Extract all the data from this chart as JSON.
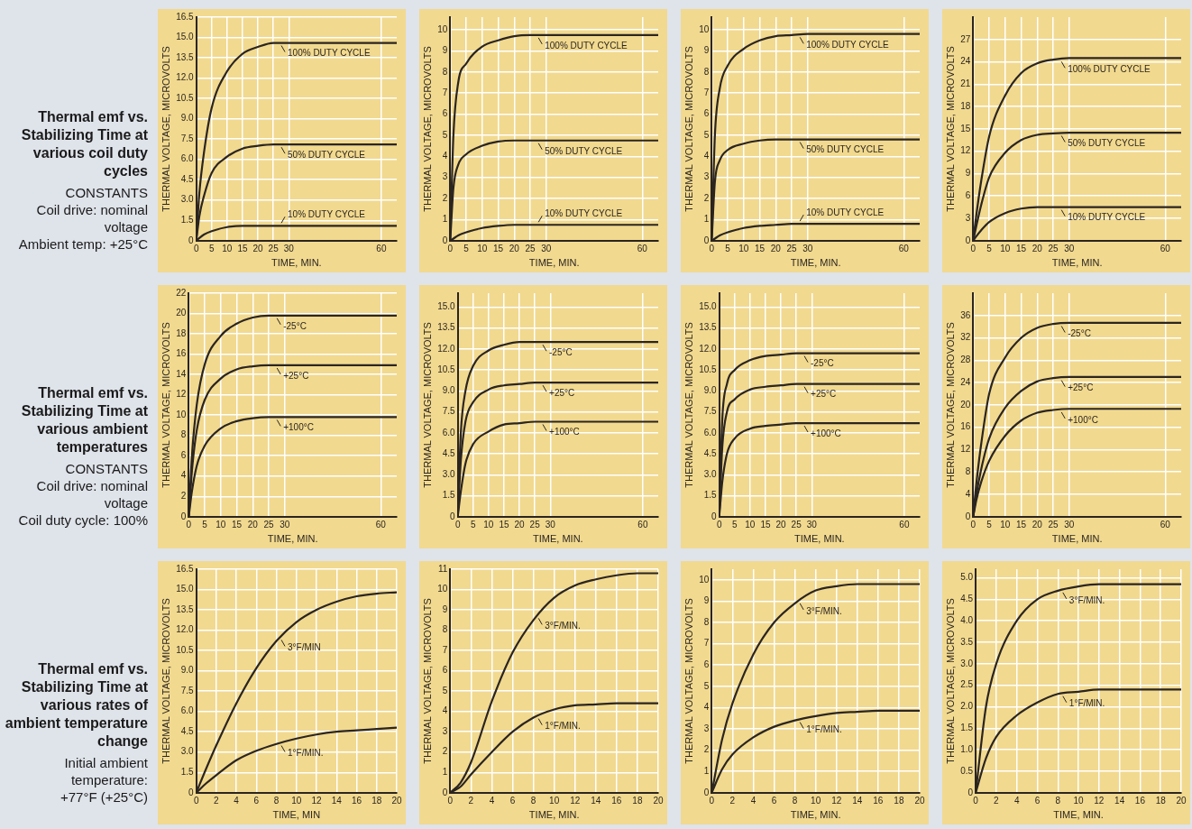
{
  "chart_data": [
    {
      "type": "other",
      "title": "Thermal emf vs. Stabilizing Time at various coil duty cycles",
      "annotations": [
        "CONSTANTS",
        "Coil drive: nominal voltage",
        "Ambient temp: +25°C"
      ]
    },
    {
      "type": "line",
      "xlabel": "TIME, MIN.",
      "ylabel": "THERMAL VOLTAGE, MICROVOLTS",
      "x": [
        0,
        1,
        2.5,
        5,
        10,
        15,
        20,
        25,
        30,
        65
      ],
      "xlim": [
        0,
        65
      ],
      "xticks": [
        0,
        5,
        10,
        15,
        20,
        25,
        30,
        60
      ],
      "ylim": [
        0,
        16.5
      ],
      "yticks": [
        0,
        1.5,
        {
          "value": 3,
          "label": "3.0"
        },
        4.5,
        {
          "value": 6,
          "label": "6.0"
        },
        7.5,
        {
          "value": 9,
          "label": "9.0"
        },
        10.5,
        {
          "value": 12,
          "label": "12.0"
        },
        13.5,
        {
          "value": 15,
          "label": "15.0"
        },
        16.5
      ],
      "grid": true,
      "legend": "right",
      "marker": "none",
      "line_style": "solid",
      "series": [
        {
          "name": "100% DUTY CYCLE",
          "color": "#2b2520",
          "values": [
            0,
            3.5,
            6.5,
            9.8,
            12.5,
            13.8,
            14.3,
            14.6,
            14.6,
            14.6
          ]
        },
        {
          "name": "50% DUTY CYCLE",
          "color": "#2b2520",
          "values": [
            0,
            1.8,
            3.3,
            5.0,
            6.2,
            6.8,
            7.0,
            7.1,
            7.1,
            7.1
          ]
        },
        {
          "name": "10% DUTY CYCLE",
          "color": "#2b2520",
          "values": [
            0,
            0.2,
            0.45,
            0.7,
            1.0,
            1.1,
            1.1,
            1.1,
            1.1,
            1.1
          ]
        }
      ]
    },
    {
      "type": "line",
      "xlabel": "TIME, MIN.",
      "ylabel": "THERMAL VOLTAGE, MICROVOLTS",
      "x": [
        0,
        1,
        2.5,
        5,
        10,
        15,
        20,
        25,
        30,
        65
      ],
      "xlim": [
        0,
        65
      ],
      "xticks": [
        0,
        5,
        10,
        15,
        20,
        25,
        30,
        60
      ],
      "ylim": [
        0,
        10.6
      ],
      "yticks": [
        0,
        1,
        2,
        3,
        4,
        5,
        6,
        7,
        8,
        9,
        10
      ],
      "grid": true,
      "legend": "right",
      "marker": "none",
      "line_style": "solid",
      "series": [
        {
          "name": "100% DUTY CYCLE",
          "color": "#2b2520",
          "values": [
            0,
            5,
            7.5,
            8.4,
            9.2,
            9.5,
            9.7,
            9.75,
            9.75,
            9.75
          ]
        },
        {
          "name": "50% DUTY CYCLE",
          "color": "#2b2520",
          "values": [
            0,
            2.5,
            3.6,
            4.1,
            4.5,
            4.7,
            4.75,
            4.75,
            4.75,
            4.75
          ]
        },
        {
          "name": "10% DUTY CYCLE",
          "color": "#2b2520",
          "values": [
            0,
            0.1,
            0.25,
            0.4,
            0.6,
            0.7,
            0.75,
            0.75,
            0.75,
            0.75
          ]
        }
      ]
    },
    {
      "type": "line",
      "xlabel": "TIME, MIN.",
      "ylabel": "THERMAL VOLTAGE, MICROVOLTS",
      "x": [
        0,
        1,
        2.5,
        5,
        10,
        15,
        20,
        25,
        30,
        65
      ],
      "xlim": [
        0,
        65
      ],
      "xticks": [
        0,
        5,
        10,
        15,
        20,
        25,
        30,
        60
      ],
      "ylim": [
        0,
        10.6
      ],
      "yticks": [
        0,
        1,
        2,
        3,
        4,
        5,
        6,
        7,
        8,
        9,
        10
      ],
      "grid": true,
      "legend": "right",
      "marker": "none",
      "line_style": "solid",
      "series": [
        {
          "name": "100% DUTY CYCLE",
          "color": "#2b2520",
          "values": [
            0,
            5,
            7.2,
            8.3,
            9.1,
            9.5,
            9.7,
            9.75,
            9.8,
            9.8
          ]
        },
        {
          "name": "50% DUTY CYCLE",
          "color": "#2b2520",
          "values": [
            0,
            2.8,
            3.8,
            4.3,
            4.6,
            4.75,
            4.8,
            4.8,
            4.8,
            4.8
          ]
        },
        {
          "name": "10% DUTY CYCLE",
          "color": "#2b2520",
          "values": [
            0,
            0.1,
            0.25,
            0.4,
            0.6,
            0.7,
            0.75,
            0.8,
            0.8,
            0.8
          ]
        }
      ]
    },
    {
      "type": "line",
      "xlabel": "TIME, MIN.",
      "ylabel": "THERMAL VOLTAGE, MICROVOLTS",
      "x": [
        0,
        1,
        2.5,
        5,
        10,
        15,
        20,
        25,
        30,
        65
      ],
      "xlim": [
        0,
        65
      ],
      "xticks": [
        0,
        5,
        10,
        15,
        20,
        25,
        30,
        60
      ],
      "ylim": [
        0,
        30
      ],
      "yticks": [
        0,
        3,
        6,
        9,
        12,
        15,
        18,
        21,
        24,
        27
      ],
      "grid": true,
      "legend": "right",
      "marker": "none",
      "line_style": "solid",
      "series": [
        {
          "name": "100% DUTY CYCLE",
          "color": "#2b2520",
          "values": [
            0,
            3.5,
            8,
            14,
            19.5,
            22.5,
            23.8,
            24.3,
            24.5,
            24.5
          ]
        },
        {
          "name": "50% DUTY CYCLE",
          "color": "#2b2520",
          "values": [
            0,
            2,
            4.8,
            8.5,
            11.8,
            13.5,
            14.2,
            14.4,
            14.5,
            14.5
          ]
        },
        {
          "name": "10% DUTY CYCLE",
          "color": "#2b2520",
          "values": [
            0,
            0.6,
            1.4,
            2.5,
            3.7,
            4.3,
            4.5,
            4.5,
            4.5,
            4.5
          ]
        }
      ]
    },
    {
      "type": "other",
      "title": "Thermal emf vs. Stabilizing Time at various ambient temperatures",
      "annotations": [
        "CONSTANTS",
        "Coil drive: nominal voltage",
        "Coil duty cycle: 100%"
      ]
    },
    {
      "type": "line",
      "xlabel": "TIME, MIN.",
      "ylabel": "THERMAL VOLTAGE, MICROVOLTS",
      "x": [
        0,
        1,
        2.5,
        5,
        10,
        15,
        20,
        25,
        30,
        65
      ],
      "xlim": [
        0,
        65
      ],
      "xticks": [
        0,
        5,
        10,
        15,
        20,
        25,
        30,
        60
      ],
      "ylim": [
        0,
        22
      ],
      "yticks": [
        0,
        2,
        4,
        6,
        8,
        10,
        12,
        14,
        16,
        18,
        20,
        22
      ],
      "grid": true,
      "legend": "right",
      "marker": "none",
      "line_style": "solid",
      "series": [
        {
          "name": "-25°C",
          "color": "#2b2520",
          "values": [
            0,
            6,
            11,
            15,
            17.8,
            19,
            19.6,
            19.8,
            19.8,
            19.8
          ]
        },
        {
          "name": "+25°C",
          "color": "#2b2520",
          "values": [
            0,
            4.5,
            8.5,
            11.5,
            13.6,
            14.5,
            14.8,
            14.9,
            14.9,
            14.9
          ]
        },
        {
          "name": "+100°C",
          "color": "#2b2520",
          "values": [
            0,
            2.5,
            5,
            7,
            8.7,
            9.4,
            9.7,
            9.8,
            9.8,
            9.8
          ]
        }
      ]
    },
    {
      "type": "line",
      "xlabel": "TIME, MIN.",
      "ylabel": "THERMAL VOLTAGE, MICROVOLTS",
      "x": [
        0,
        1,
        2.5,
        5,
        10,
        15,
        20,
        25,
        30,
        65
      ],
      "xlim": [
        0,
        65
      ],
      "xticks": [
        0,
        5,
        10,
        15,
        20,
        25,
        30,
        60
      ],
      "ylim": [
        0,
        16
      ],
      "yticks": [
        0,
        1.5,
        {
          "value": 3,
          "label": "3.0"
        },
        4.5,
        {
          "value": 6,
          "label": "6.0"
        },
        7.5,
        {
          "value": 9,
          "label": "9.0"
        },
        10.5,
        {
          "value": 12,
          "label": "12.0"
        },
        13.5,
        {
          "value": 15,
          "label": "15.0"
        }
      ],
      "grid": true,
      "legend": "right",
      "marker": "none",
      "line_style": "solid",
      "series": [
        {
          "name": "-25°C",
          "color": "#2b2520",
          "values": [
            0,
            6,
            9,
            10.8,
            11.9,
            12.3,
            12.5,
            12.5,
            12.5,
            12.5
          ]
        },
        {
          "name": "+25°C",
          "color": "#2b2520",
          "values": [
            0,
            4,
            6.8,
            8.2,
            9.1,
            9.4,
            9.5,
            9.6,
            9.6,
            9.6
          ]
        },
        {
          "name": "+100°C",
          "color": "#2b2520",
          "values": [
            0,
            1.8,
            3.8,
            5.2,
            6.1,
            6.6,
            6.7,
            6.8,
            6.8,
            6.8
          ]
        }
      ]
    },
    {
      "type": "line",
      "xlabel": "TIME, MIN.",
      "ylabel": "THERMAL VOLTAGE, MICROVOLTS",
      "x": [
        0,
        1,
        2.5,
        5,
        10,
        15,
        20,
        25,
        30,
        65
      ],
      "xlim": [
        0,
        65
      ],
      "xticks": [
        0,
        5,
        10,
        15,
        20,
        25,
        30,
        60
      ],
      "ylim": [
        0,
        16
      ],
      "yticks": [
        0,
        1.5,
        {
          "value": 3,
          "label": "3.0"
        },
        4.5,
        {
          "value": 6,
          "label": "6.0"
        },
        7.5,
        {
          "value": 9,
          "label": "9.0"
        },
        10.5,
        {
          "value": 12,
          "label": "12.0"
        },
        13.5,
        {
          "value": 15,
          "label": "15.0"
        }
      ],
      "grid": true,
      "legend": "right",
      "marker": "none",
      "line_style": "solid",
      "series": [
        {
          "name": "-25°C",
          "color": "#2b2520",
          "values": [
            0,
            7,
            9.5,
            10.5,
            11.2,
            11.5,
            11.6,
            11.7,
            11.7,
            11.7
          ]
        },
        {
          "name": "+25°C",
          "color": "#2b2520",
          "values": [
            0,
            5,
            7.5,
            8.4,
            9.1,
            9.3,
            9.4,
            9.5,
            9.5,
            9.5
          ]
        },
        {
          "name": "+100°C",
          "color": "#2b2520",
          "values": [
            0,
            2.5,
            4.5,
            5.6,
            6.3,
            6.5,
            6.6,
            6.7,
            6.7,
            6.7
          ]
        }
      ]
    },
    {
      "type": "line",
      "xlabel": "TIME, MIN.",
      "ylabel": "THERMAL VOLTAGE, MICROVOLTS",
      "x": [
        0,
        1,
        2.5,
        5,
        10,
        15,
        20,
        25,
        30,
        65
      ],
      "xlim": [
        0,
        65
      ],
      "xticks": [
        0,
        5,
        10,
        15,
        20,
        25,
        30,
        60
      ],
      "ylim": [
        0,
        40
      ],
      "yticks": [
        0,
        4,
        8,
        12,
        16,
        20,
        24,
        28,
        32,
        36
      ],
      "grid": true,
      "legend": "right",
      "marker": "none",
      "line_style": "solid",
      "series": [
        {
          "name": "-25°C",
          "color": "#2b2520",
          "values": [
            0,
            6,
            13,
            22,
            28.5,
            32,
            33.8,
            34.5,
            34.7,
            34.7
          ]
        },
        {
          "name": "+25°C",
          "color": "#2b2520",
          "values": [
            0,
            4,
            8.5,
            14,
            19.5,
            22.5,
            24.2,
            24.8,
            25,
            25
          ]
        },
        {
          "name": "+100°C",
          "color": "#2b2520",
          "values": [
            0,
            3,
            6.2,
            10,
            14.5,
            17.2,
            18.6,
            19.1,
            19.3,
            19.3
          ]
        }
      ]
    },
    {
      "type": "other",
      "title": "Thermal emf vs. Stabilizing Time at various rates of ambient temperature change",
      "annotations": [
        "Initial ambient temperature:",
        "+77°F (+25°C)"
      ]
    },
    {
      "type": "line",
      "xlabel": "TIME, MIN",
      "ylabel": "THERMAL VOLTAGE, MICROVOLTS",
      "x": [
        0,
        1,
        2,
        4,
        6,
        8,
        10,
        12,
        14,
        16,
        18,
        20
      ],
      "xlim": [
        0,
        20
      ],
      "xticks": [
        0,
        2,
        4,
        6,
        8,
        10,
        12,
        14,
        16,
        18,
        20
      ],
      "ylim": [
        0,
        16.5
      ],
      "yticks": [
        0,
        1.5,
        {
          "value": 3,
          "label": "3.0"
        },
        4.5,
        {
          "value": 6,
          "label": "6.0"
        },
        7.5,
        {
          "value": 9,
          "label": "9.0"
        },
        10.5,
        {
          "value": 12,
          "label": "12.0"
        },
        13.5,
        {
          "value": 15,
          "label": "15.0"
        },
        16.5
      ],
      "grid": true,
      "legend": "right",
      "marker": "none",
      "line_style": "solid",
      "series": [
        {
          "name": "3°F/MIN",
          "color": "#2b2520",
          "values": [
            0,
            1.8,
            3.5,
            6.6,
            9.2,
            11.2,
            12.6,
            13.5,
            14.1,
            14.5,
            14.7,
            14.8
          ]
        },
        {
          "name": "1°F/MIN.",
          "color": "#2b2520",
          "values": [
            0,
            0.7,
            1.3,
            2.4,
            3.1,
            3.6,
            4.0,
            4.3,
            4.5,
            4.6,
            4.7,
            4.8
          ]
        }
      ]
    },
    {
      "type": "line",
      "xlabel": "TIME, MIN.",
      "ylabel": "THERMAL VOLTAGE, MICROVOLTS",
      "x": [
        0,
        1,
        2,
        4,
        6,
        8,
        10,
        12,
        14,
        16,
        18,
        20
      ],
      "xlim": [
        0,
        20
      ],
      "xticks": [
        0,
        2,
        4,
        6,
        8,
        10,
        12,
        14,
        16,
        18,
        20
      ],
      "ylim": [
        0,
        11
      ],
      "yticks": [
        0,
        1,
        2,
        3,
        4,
        5,
        6,
        7,
        8,
        9,
        10,
        11
      ],
      "grid": true,
      "legend": "right",
      "marker": "none",
      "line_style": "solid",
      "series": [
        {
          "name": "3°F/MIN.",
          "color": "#2b2520",
          "values": [
            0,
            0.5,
            1.5,
            4.5,
            6.9,
            8.5,
            9.6,
            10.2,
            10.5,
            10.7,
            10.8,
            10.8
          ]
        },
        {
          "name": "1°F/MIN.",
          "color": "#2b2520",
          "values": [
            0,
            0.3,
            0.9,
            2.0,
            3.0,
            3.7,
            4.1,
            4.3,
            4.35,
            4.4,
            4.4,
            4.4
          ]
        }
      ]
    },
    {
      "type": "line",
      "xlabel": "TIME, MIN.",
      "ylabel": "THERMAL VOLTAGE, MICROVOLTS",
      "x": [
        0,
        1,
        2,
        4,
        6,
        8,
        10,
        12,
        14,
        16,
        18,
        20
      ],
      "xlim": [
        0,
        20
      ],
      "xticks": [
        0,
        2,
        4,
        6,
        8,
        10,
        12,
        14,
        16,
        18,
        20
      ],
      "ylim": [
        0,
        10.5
      ],
      "yticks": [
        0,
        1,
        2,
        3,
        4,
        5,
        6,
        7,
        8,
        9,
        10
      ],
      "grid": true,
      "legend": "right",
      "marker": "none",
      "line_style": "solid",
      "series": [
        {
          "name": "3°F/MIN.",
          "color": "#2b2520",
          "values": [
            0,
            2.5,
            4.2,
            6.5,
            8,
            8.9,
            9.5,
            9.7,
            9.8,
            9.8,
            9.8,
            9.8
          ]
        },
        {
          "name": "1°F/MIN.",
          "color": "#2b2520",
          "values": [
            0,
            1.1,
            1.8,
            2.6,
            3.1,
            3.4,
            3.6,
            3.75,
            3.8,
            3.85,
            3.85,
            3.85
          ]
        }
      ]
    },
    {
      "type": "line",
      "xlabel": "TIME, MIN.",
      "ylabel": "THERMAL VOLTAGE, MICROVOLTS",
      "x": [
        0,
        1,
        2,
        4,
        6,
        8,
        10,
        12,
        14,
        16,
        18,
        20
      ],
      "xlim": [
        0,
        20
      ],
      "xticks": [
        0,
        2,
        4,
        6,
        8,
        10,
        12,
        14,
        16,
        18,
        20
      ],
      "ylim": [
        0,
        5.2
      ],
      "yticks": [
        0,
        0.5,
        {
          "value": 1,
          "label": "1.0"
        },
        1.5,
        {
          "value": 2,
          "label": "2.0"
        },
        2.5,
        {
          "value": 3,
          "label": "3.0"
        },
        3.5,
        {
          "value": 4,
          "label": "4.0"
        },
        4.5,
        {
          "value": 5,
          "label": "5.0"
        }
      ],
      "grid": true,
      "legend": "right",
      "marker": "none",
      "line_style": "solid",
      "series": [
        {
          "name": "3°F/MIN.",
          "color": "#2b2520",
          "values": [
            0,
            2.0,
            3.0,
            4.0,
            4.5,
            4.7,
            4.8,
            4.85,
            4.85,
            4.85,
            4.85,
            4.85
          ]
        },
        {
          "name": "1°F/MIN.",
          "color": "#2b2520",
          "values": [
            0,
            0.8,
            1.3,
            1.8,
            2.1,
            2.3,
            2.35,
            2.4,
            2.4,
            2.4,
            2.4,
            2.4
          ]
        }
      ]
    }
  ]
}
